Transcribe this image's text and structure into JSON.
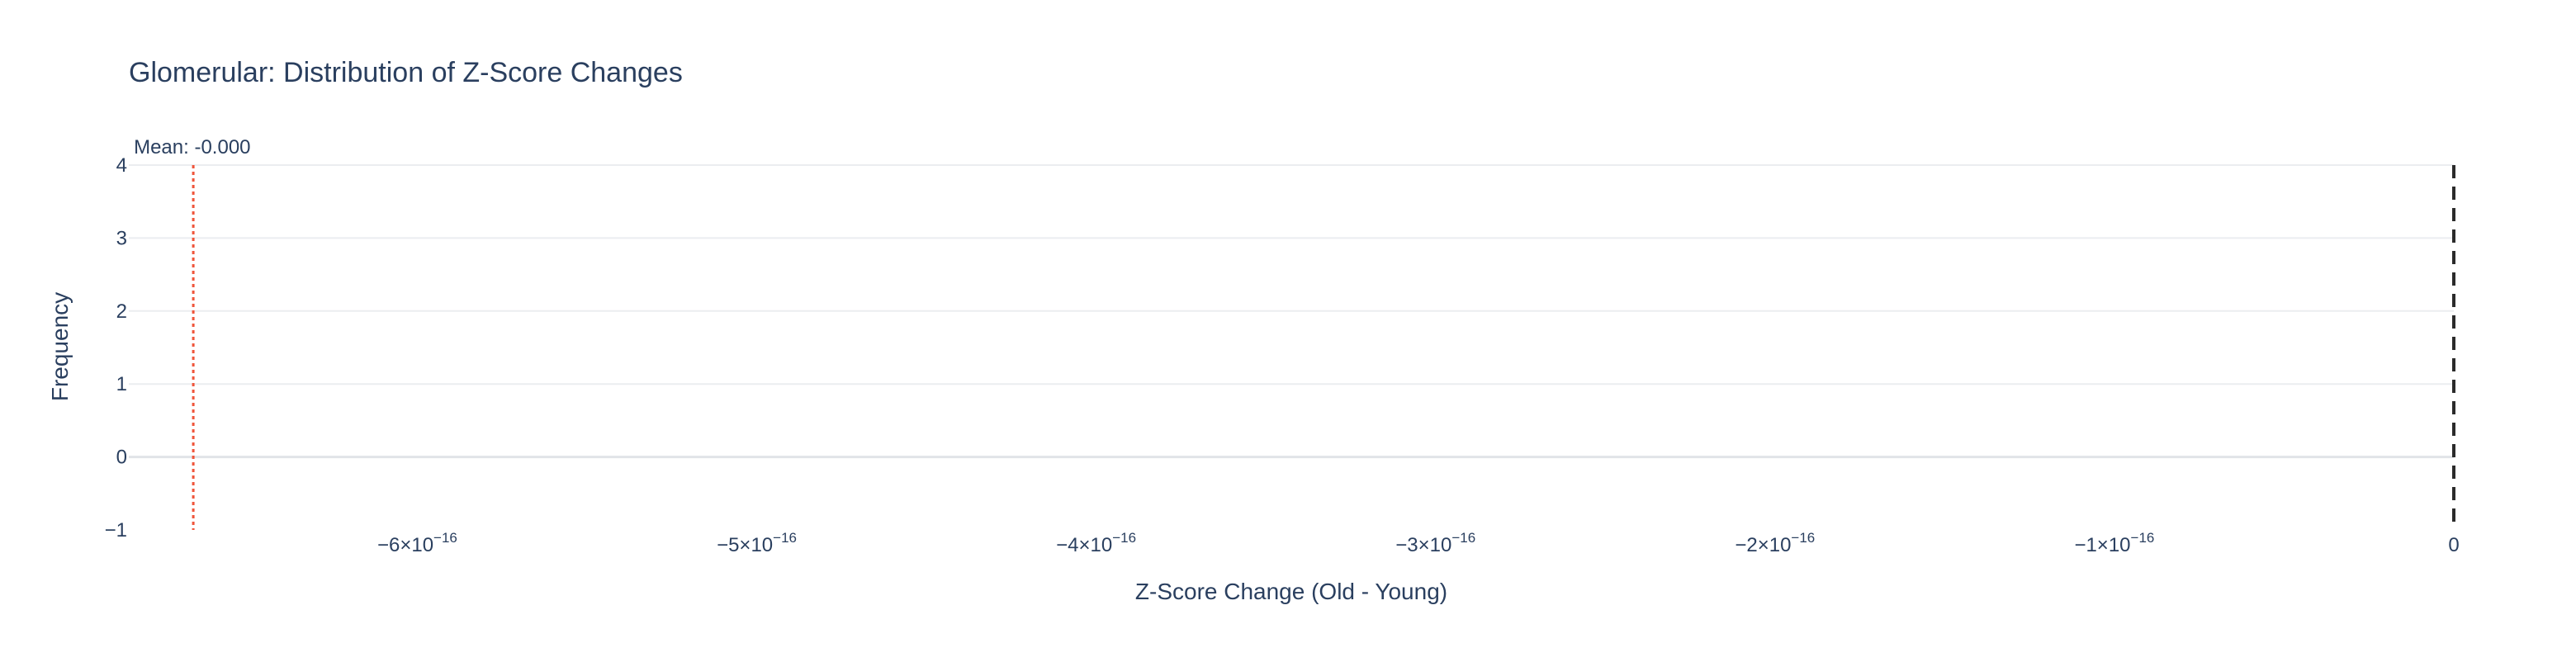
{
  "chart_data": {
    "type": "bar",
    "title": "Glomerular: Distribution of Z-Score Changes",
    "xlabel": "Z-Score Change (Old - Young)",
    "ylabel": "Frequency",
    "xlim": [
      -6.85e-16,
      0.0
    ],
    "ylim": [
      -1,
      4
    ],
    "x_ticks": [
      {
        "value": -6e-16,
        "mantissa": "−6×10",
        "exponent": "−16"
      },
      {
        "value": -5e-16,
        "mantissa": "−5×10",
        "exponent": "−16"
      },
      {
        "value": -4e-16,
        "mantissa": "−4×10",
        "exponent": "−16"
      },
      {
        "value": -3e-16,
        "mantissa": "−3×10",
        "exponent": "−16"
      },
      {
        "value": -2e-16,
        "mantissa": "−2×10",
        "exponent": "−16"
      },
      {
        "value": -1e-16,
        "mantissa": "−1×10",
        "exponent": "−16"
      },
      {
        "value": 0,
        "mantissa": "0",
        "exponent": ""
      }
    ],
    "y_ticks": [
      {
        "value": -1,
        "label": "−1"
      },
      {
        "value": 0,
        "label": "0"
      },
      {
        "value": 1,
        "label": "1"
      },
      {
        "value": 2,
        "label": "2"
      },
      {
        "value": 3,
        "label": "3"
      },
      {
        "value": 4,
        "label": "4"
      }
    ],
    "grid": true,
    "reference_lines": [
      {
        "name": "mean-line",
        "x": -6.66e-16,
        "style": "dotted",
        "color": "#ef553b",
        "label": "Mean: -0.000"
      },
      {
        "name": "zero-reference-line",
        "x": 0,
        "style": "dashed",
        "color": "#2b2b2b",
        "label": ""
      }
    ],
    "series": []
  }
}
